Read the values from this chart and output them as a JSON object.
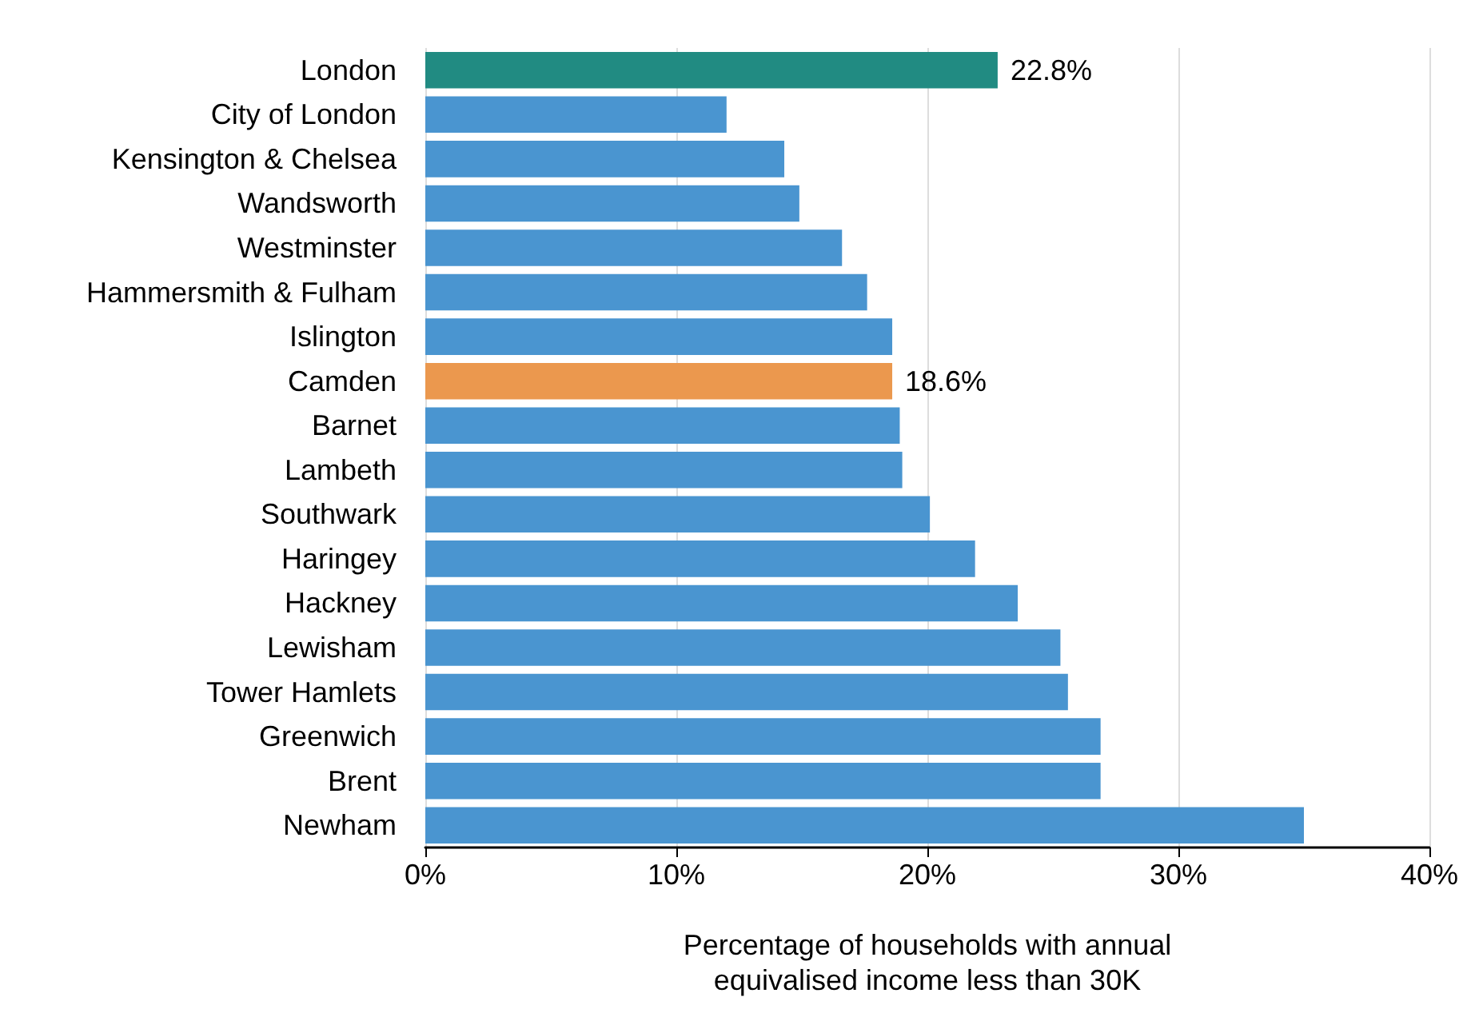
{
  "chart_data": {
    "type": "bar",
    "orientation": "horizontal",
    "categories": [
      "London",
      "City of London",
      "Kensington & Chelsea",
      "Wandsworth",
      "Westminster",
      "Hammersmith & Fulham",
      "Islington",
      "Camden",
      "Barnet",
      "Lambeth",
      "Southwark",
      "Haringey",
      "Hackney",
      "Lewisham",
      "Tower Hamlets",
      "Greenwich",
      "Brent",
      "Newham"
    ],
    "values": [
      22.8,
      12.0,
      14.3,
      14.9,
      16.6,
      17.6,
      18.6,
      18.6,
      18.9,
      19.0,
      20.1,
      21.9,
      23.6,
      25.3,
      25.6,
      26.9,
      26.9,
      35.0
    ],
    "colors": [
      "#218b82",
      "#4a95d0",
      "#4a95d0",
      "#4a95d0",
      "#4a95d0",
      "#4a95d0",
      "#4a95d0",
      "#eb984e",
      "#4a95d0",
      "#4a95d0",
      "#4a95d0",
      "#4a95d0",
      "#4a95d0",
      "#4a95d0",
      "#4a95d0",
      "#4a95d0",
      "#4a95d0",
      "#4a95d0"
    ],
    "value_labels": [
      "22.8%",
      null,
      null,
      null,
      null,
      null,
      null,
      "18.6%",
      null,
      null,
      null,
      null,
      null,
      null,
      null,
      null,
      null,
      null
    ],
    "xlabel": "Percentage of households with annual equivalised income less than 30K",
    "xlim": [
      0,
      40
    ],
    "xticks": [
      {
        "value": 0,
        "label": "0%"
      },
      {
        "value": 10,
        "label": "10%"
      },
      {
        "value": 20,
        "label": "20%"
      },
      {
        "value": 30,
        "label": "30%"
      },
      {
        "value": 40,
        "label": "40%"
      }
    ],
    "grid": "x"
  }
}
